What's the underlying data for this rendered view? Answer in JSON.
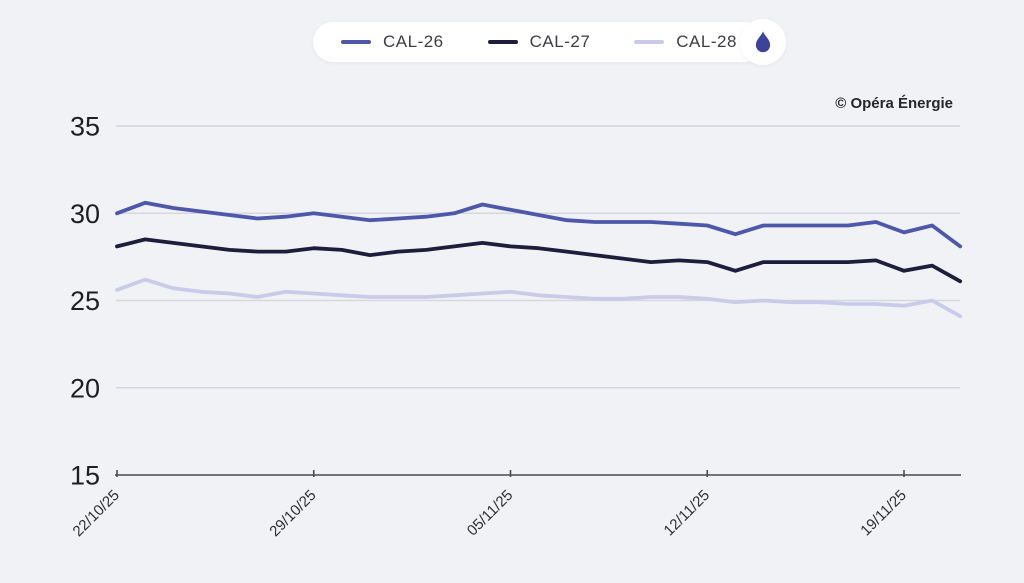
{
  "watermark": "© Opéra Énergie",
  "legend": {
    "items": [
      {
        "label": "CAL-26",
        "color": "#4d58ab"
      },
      {
        "label": "CAL-27",
        "color": "#1e1e3c"
      },
      {
        "label": "CAL-28",
        "color": "#c9cce9"
      }
    ],
    "flame_icon_color": "#3d429b"
  },
  "chart_data": {
    "type": "line",
    "title": "",
    "xlabel": "",
    "ylabel": "",
    "ylim": [
      15,
      35
    ],
    "y_ticks": [
      15,
      20,
      25,
      30,
      35
    ],
    "grid": true,
    "legend_position": "top-center",
    "x": [
      "22/10/25",
      "23/10/25",
      "24/10/25",
      "25/10/25",
      "26/10/25",
      "27/10/25",
      "28/10/25",
      "29/10/25",
      "30/10/25",
      "31/10/25",
      "01/11/25",
      "02/11/25",
      "03/11/25",
      "04/11/25",
      "05/11/25",
      "06/11/25",
      "07/11/25",
      "08/11/25",
      "09/11/25",
      "10/11/25",
      "11/11/25",
      "12/11/25",
      "13/11/25",
      "14/11/25",
      "15/11/25",
      "16/11/25",
      "17/11/25",
      "18/11/25",
      "19/11/25",
      "20/11/25",
      "21/11/25"
    ],
    "x_tick_labels": [
      "22/10/25",
      "29/10/25",
      "05/11/25",
      "12/11/25",
      "19/11/25"
    ],
    "x_tick_indices": [
      0,
      7,
      14,
      21,
      28
    ],
    "series": [
      {
        "name": "CAL-26",
        "color": "#4d58ab",
        "values": [
          30.0,
          30.6,
          30.3,
          30.1,
          29.9,
          29.7,
          29.8,
          30.0,
          29.8,
          29.6,
          29.7,
          29.8,
          30.0,
          30.5,
          30.2,
          29.9,
          29.6,
          29.5,
          29.5,
          29.5,
          29.4,
          29.3,
          28.8,
          29.3,
          29.3,
          29.3,
          29.3,
          29.5,
          28.9,
          29.3,
          28.1
        ]
      },
      {
        "name": "CAL-27",
        "color": "#1e1e3c",
        "values": [
          28.1,
          28.5,
          28.3,
          28.1,
          27.9,
          27.8,
          27.8,
          28.0,
          27.9,
          27.6,
          27.8,
          27.9,
          28.1,
          28.3,
          28.1,
          28.0,
          27.8,
          27.6,
          27.4,
          27.2,
          27.3,
          27.2,
          26.7,
          27.2,
          27.2,
          27.2,
          27.2,
          27.3,
          26.7,
          27.0,
          26.1
        ]
      },
      {
        "name": "CAL-28",
        "color": "#c9cce9",
        "values": [
          25.6,
          26.2,
          25.7,
          25.5,
          25.4,
          25.2,
          25.5,
          25.4,
          25.3,
          25.2,
          25.2,
          25.2,
          25.3,
          25.4,
          25.5,
          25.3,
          25.2,
          25.1,
          25.1,
          25.2,
          25.2,
          25.1,
          24.9,
          25.0,
          24.9,
          24.9,
          24.8,
          24.8,
          24.7,
          25.0,
          24.1
        ]
      }
    ]
  },
  "style": {
    "background": "#f1f2f6",
    "gridline_color": "#d6d7dd",
    "axis_color": "#4a4a4a",
    "y_label_color": "#1f1f23",
    "x_label_color": "#2e2e33"
  }
}
